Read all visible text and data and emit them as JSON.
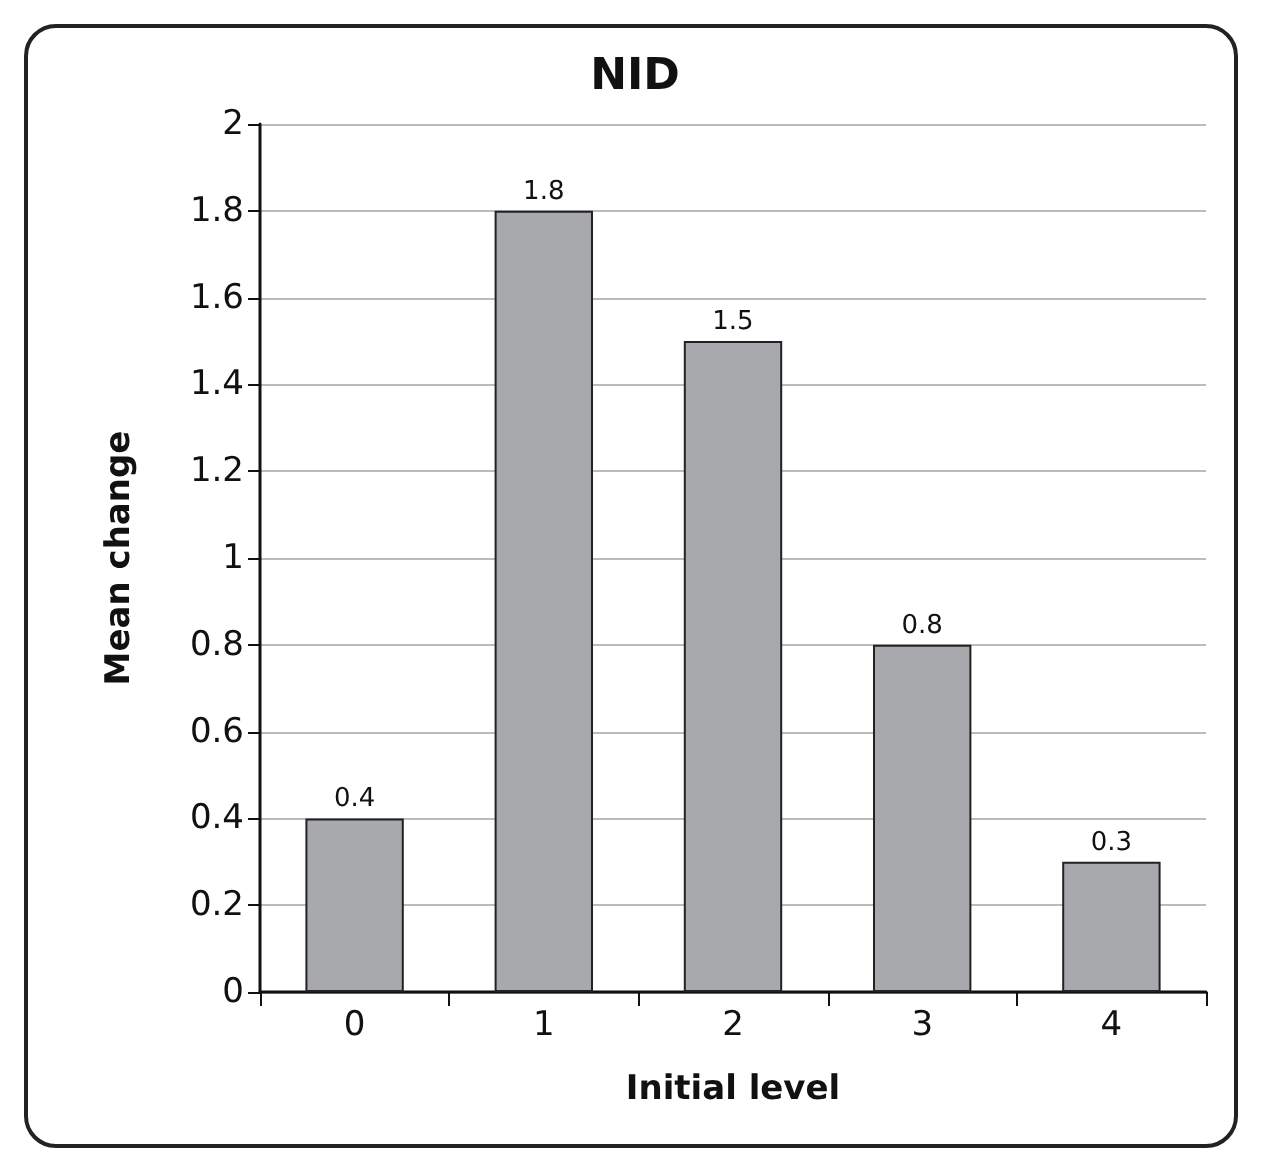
{
  "chart_data": {
    "type": "bar",
    "title": "NID",
    "xlabel": "Initial level",
    "ylabel": "Mean change",
    "categories": [
      "0",
      "1",
      "2",
      "3",
      "4"
    ],
    "values": [
      0.4,
      1.8,
      1.5,
      0.8,
      0.3
    ],
    "color": "#a7a9ac",
    "data_labels": true,
    "grid": "y",
    "ylim": [
      0,
      2
    ],
    "yticks": [
      0,
      0.2,
      0.4,
      0.6,
      0.8,
      1,
      1.2,
      1.4,
      1.6,
      1.8,
      2
    ]
  }
}
